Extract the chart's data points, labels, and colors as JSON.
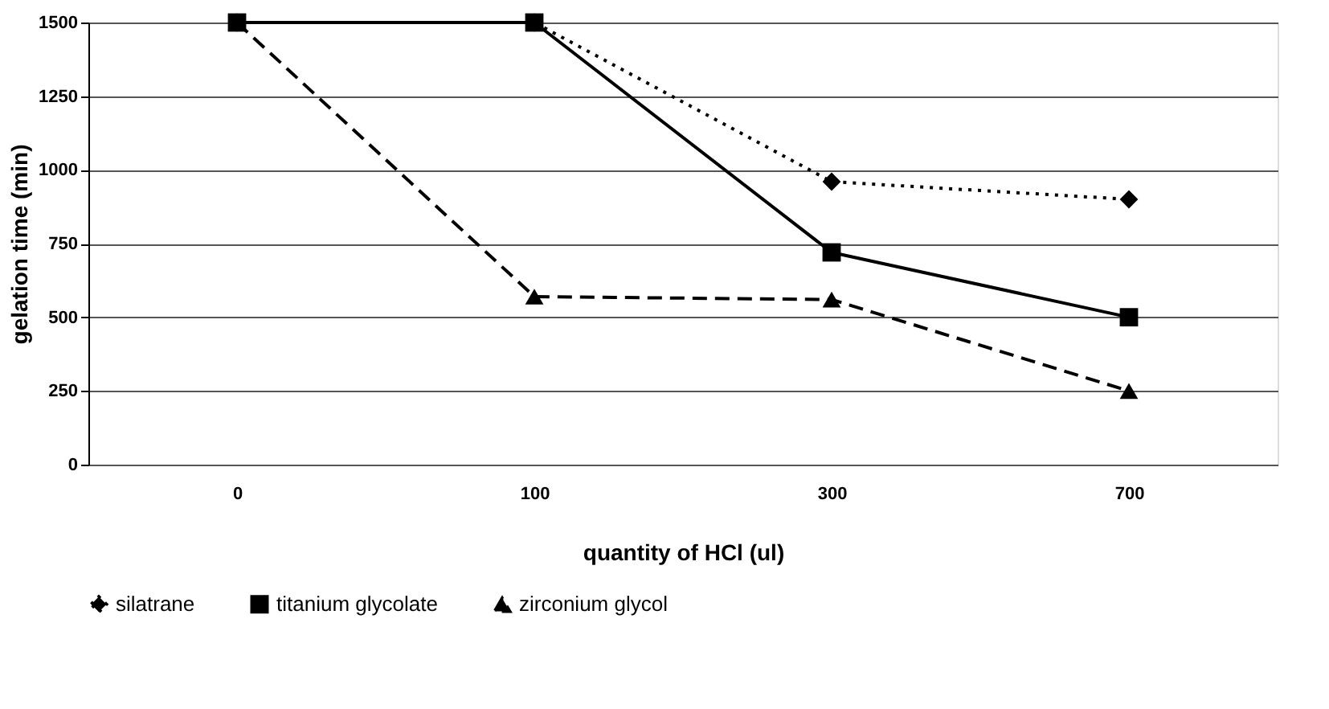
{
  "chart_data": {
    "type": "line",
    "xlabel": "quantity of HCl (ul)",
    "ylabel": "gelation time (min)",
    "categories": [
      "0",
      "100",
      "300",
      "700"
    ],
    "series": [
      {
        "name": "silatrane",
        "color": "#000000",
        "marker": "diamond",
        "line_style": "dotted",
        "values": [
          1500,
          1500,
          960,
          900
        ]
      },
      {
        "name": "titanium glycolate",
        "color": "#000000",
        "marker": "square",
        "line_style": "solid",
        "values": [
          1500,
          1500,
          720,
          500
        ]
      },
      {
        "name": "zirconium glycol",
        "color": "#000000",
        "marker": "triangle",
        "line_style": "dashed",
        "values": [
          1500,
          570,
          560,
          250
        ]
      }
    ],
    "ylim": [
      0,
      1500
    ],
    "yticks": [
      0,
      250,
      500,
      750,
      1000,
      1250,
      1500
    ],
    "grid": "y",
    "legend": "bottom"
  }
}
